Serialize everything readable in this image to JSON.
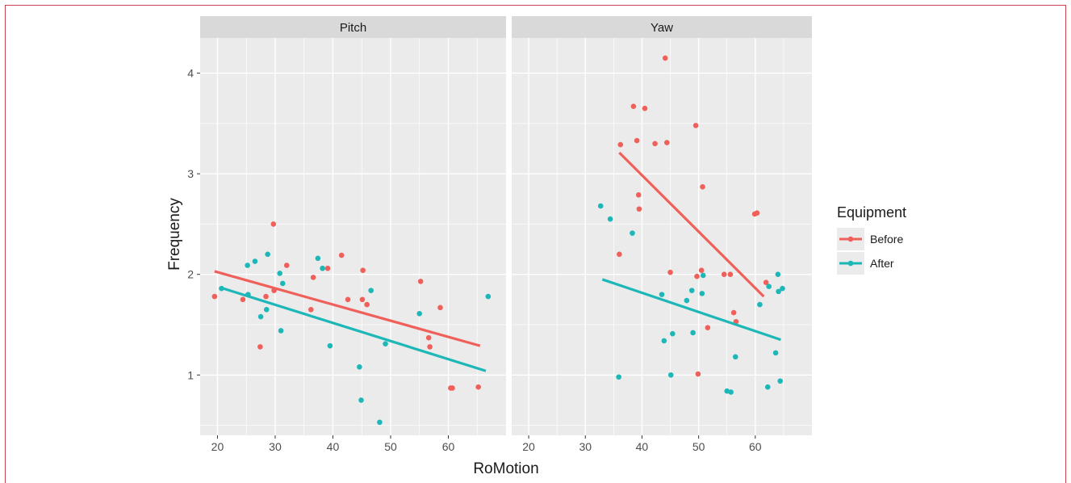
{
  "chart_data": {
    "type": "scatter",
    "xlabel": "RoMotion",
    "ylabel": "Frequency",
    "legend": {
      "title": "Equipment",
      "placement": "right"
    },
    "colors": {
      "Before": "#f0605a",
      "After": "#1eb7b8",
      "panel_bg": "#ebebeb",
      "strip_bg": "#d9d9d9",
      "grid": "#ffffff"
    },
    "grid": true,
    "xlim": [
      17,
      70
    ],
    "ylim": [
      0.4,
      4.35
    ],
    "x_ticks": [
      20,
      30,
      40,
      50,
      60
    ],
    "y_ticks": [
      1,
      2,
      3,
      4
    ],
    "x_tick_labels": [
      "20",
      "30",
      "40",
      "50",
      "60"
    ],
    "y_tick_labels": [
      "1",
      "2",
      "3",
      "4"
    ],
    "panels": [
      {
        "strip": "Pitch",
        "series": [
          {
            "name": "Before",
            "points": [
              [
                19.5,
                1.78
              ],
              [
                24.4,
                1.75
              ],
              [
                27.4,
                1.28
              ],
              [
                28.4,
                1.78
              ],
              [
                29.7,
                2.5
              ],
              [
                29.8,
                1.84
              ],
              [
                32.0,
                2.09
              ],
              [
                36.2,
                1.65
              ],
              [
                36.6,
                1.97
              ],
              [
                39.1,
                2.06
              ],
              [
                41.5,
                2.19
              ],
              [
                42.6,
                1.75
              ],
              [
                45.2,
                2.04
              ],
              [
                45.1,
                1.75
              ],
              [
                45.9,
                1.7
              ],
              [
                55.2,
                1.93
              ],
              [
                56.6,
                1.37
              ],
              [
                56.8,
                1.28
              ],
              [
                58.6,
                1.67
              ],
              [
                60.4,
                0.87
              ],
              [
                60.7,
                0.87
              ],
              [
                65.2,
                0.88
              ]
            ],
            "trend": [
              [
                19.5,
                2.03
              ],
              [
                65.5,
                1.29
              ]
            ]
          },
          {
            "name": "After",
            "points": [
              [
                20.7,
                1.86
              ],
              [
                25.2,
                2.09
              ],
              [
                25.3,
                1.8
              ],
              [
                26.5,
                2.13
              ],
              [
                27.5,
                1.58
              ],
              [
                28.5,
                1.65
              ],
              [
                28.7,
                2.2
              ],
              [
                30.8,
                2.01
              ],
              [
                31.0,
                1.44
              ],
              [
                31.3,
                1.91
              ],
              [
                37.4,
                2.16
              ],
              [
                38.2,
                2.06
              ],
              [
                39.5,
                1.29
              ],
              [
                44.6,
                1.08
              ],
              [
                44.9,
                0.75
              ],
              [
                46.6,
                1.84
              ],
              [
                48.1,
                0.53
              ],
              [
                49.1,
                1.31
              ],
              [
                55.0,
                1.61
              ],
              [
                66.9,
                1.78
              ]
            ],
            "trend": [
              [
                21.0,
                1.86
              ],
              [
                66.5,
                1.04
              ]
            ]
          }
        ]
      },
      {
        "strip": "Yaw",
        "series": [
          {
            "name": "Before",
            "points": [
              [
                36.0,
                2.2
              ],
              [
                36.2,
                3.29
              ],
              [
                38.5,
                3.67
              ],
              [
                39.1,
                3.33
              ],
              [
                39.4,
                2.79
              ],
              [
                39.5,
                2.65
              ],
              [
                40.5,
                3.65
              ],
              [
                42.3,
                3.3
              ],
              [
                44.1,
                4.15
              ],
              [
                44.4,
                3.31
              ],
              [
                45.0,
                2.02
              ],
              [
                49.5,
                3.48
              ],
              [
                49.7,
                1.98
              ],
              [
                49.9,
                1.01
              ],
              [
                50.5,
                2.04
              ],
              [
                50.7,
                2.87
              ],
              [
                51.6,
                1.47
              ],
              [
                54.5,
                2.0
              ],
              [
                55.6,
                2.0
              ],
              [
                56.2,
                1.62
              ],
              [
                56.6,
                1.53
              ],
              [
                59.9,
                2.6
              ],
              [
                60.3,
                2.61
              ],
              [
                61.9,
                1.92
              ]
            ],
            "trend": [
              [
                36.0,
                3.21
              ],
              [
                61.5,
                1.78
              ]
            ]
          },
          {
            "name": "After",
            "points": [
              [
                32.7,
                2.68
              ],
              [
                34.4,
                2.55
              ],
              [
                35.9,
                0.98
              ],
              [
                38.3,
                2.41
              ],
              [
                43.5,
                1.8
              ],
              [
                43.9,
                1.34
              ],
              [
                47.9,
                1.74
              ],
              [
                48.8,
                1.84
              ],
              [
                49.0,
                1.42
              ],
              [
                45.1,
                1.0
              ],
              [
                45.4,
                1.41
              ],
              [
                50.6,
                1.81
              ],
              [
                50.8,
                1.99
              ],
              [
                55.0,
                0.84
              ],
              [
                55.7,
                0.83
              ],
              [
                56.5,
                1.18
              ],
              [
                60.8,
                1.7
              ],
              [
                62.2,
                0.88
              ],
              [
                62.4,
                1.88
              ],
              [
                63.6,
                1.22
              ],
              [
                64.0,
                2.0
              ],
              [
                64.1,
                1.83
              ],
              [
                64.4,
                0.94
              ],
              [
                64.8,
                1.86
              ]
            ],
            "trend": [
              [
                33.0,
                1.95
              ],
              [
                64.5,
                1.35
              ]
            ]
          }
        ]
      }
    ]
  }
}
